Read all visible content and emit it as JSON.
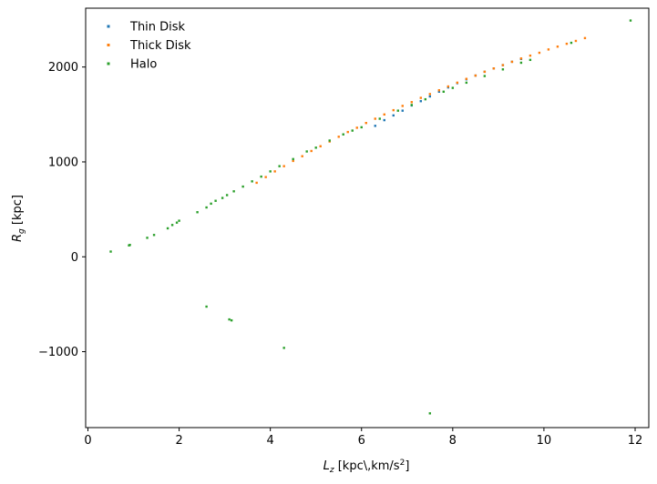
{
  "chart_data": {
    "type": "scatter",
    "title": "",
    "xlabel_main": "L",
    "xlabel_sub": "z",
    "xlabel_unit_pre": "[kpc\\,km/s",
    "xlabel_sup": "2",
    "xlabel_unit_post": "]",
    "ylabel_main": "R",
    "ylabel_sub": "g",
    "ylabel_unit": "[kpc]",
    "xlim": [
      -0.05,
      12.3
    ],
    "ylim": [
      -1800,
      2620
    ],
    "xticks": [
      0,
      2,
      4,
      6,
      8,
      10,
      12
    ],
    "xtick_labels": [
      "0",
      "2",
      "4",
      "6",
      "8",
      "10",
      "12"
    ],
    "yticks": [
      -1000,
      0,
      1000,
      2000
    ],
    "ytick_labels": [
      "−1000",
      "0",
      "1000",
      "2000"
    ],
    "grid": false,
    "legend_position": "top-left",
    "series": [
      {
        "name": "Thin Disk",
        "color": "#1f77b4",
        "x": [
          6.3,
          6.5,
          6.7,
          6.9,
          7.1,
          7.3,
          7.5,
          7.7,
          7.9,
          8.1,
          8.3,
          8.5,
          8.7,
          8.9,
          9.1,
          9.3,
          9.5
        ],
        "y": [
          1380,
          1440,
          1490,
          1540,
          1595,
          1640,
          1690,
          1740,
          1785,
          1830,
          1870,
          1910,
          1950,
          1985,
          2020,
          2055,
          2085
        ]
      },
      {
        "name": "Thick Disk",
        "color": "#ff7f0e",
        "x": [
          3.7,
          3.9,
          4.1,
          4.3,
          4.5,
          4.7,
          4.9,
          5.1,
          5.3,
          5.5,
          5.7,
          5.9,
          6.1,
          6.3,
          6.5,
          6.7,
          6.9,
          7.1,
          7.3,
          7.5,
          7.7,
          7.9,
          8.1,
          8.3,
          8.5,
          8.7,
          8.9,
          9.1,
          9.3,
          9.5,
          9.7,
          9.9,
          10.1,
          10.3,
          10.5,
          10.7,
          10.9
        ],
        "y": [
          780,
          840,
          900,
          955,
          1010,
          1060,
          1115,
          1165,
          1215,
          1265,
          1315,
          1360,
          1410,
          1455,
          1500,
          1545,
          1590,
          1630,
          1675,
          1715,
          1755,
          1795,
          1835,
          1875,
          1910,
          1950,
          1985,
          2020,
          2055,
          2090,
          2120,
          2150,
          2185,
          2215,
          2245,
          2275,
          2305
        ]
      },
      {
        "name": "Halo",
        "color": "#2ca02c",
        "x": [
          0.5,
          0.9,
          0.92,
          1.3,
          1.45,
          1.75,
          1.85,
          1.95,
          2.0,
          2.4,
          2.6,
          2.7,
          2.8,
          2.95,
          3.05,
          3.2,
          3.4,
          3.6,
          3.8,
          4.0,
          4.2,
          4.5,
          4.8,
          5.0,
          5.3,
          5.6,
          5.8,
          6.0,
          6.4,
          6.8,
          7.1,
          7.4,
          7.8,
          8.0,
          8.3,
          8.7,
          9.1,
          9.5,
          9.7,
          10.6,
          11.9,
          2.6,
          3.1,
          3.15,
          4.3,
          7.5
        ],
        "y": [
          55,
          120,
          125,
          200,
          230,
          300,
          335,
          360,
          380,
          470,
          520,
          560,
          590,
          620,
          650,
          690,
          740,
          795,
          845,
          900,
          955,
          1030,
          1110,
          1150,
          1225,
          1290,
          1330,
          1365,
          1455,
          1540,
          1600,
          1660,
          1740,
          1780,
          1835,
          1905,
          1975,
          2045,
          2075,
          2255,
          2490,
          -525,
          -660,
          -670,
          -960,
          -1650
        ]
      }
    ]
  }
}
